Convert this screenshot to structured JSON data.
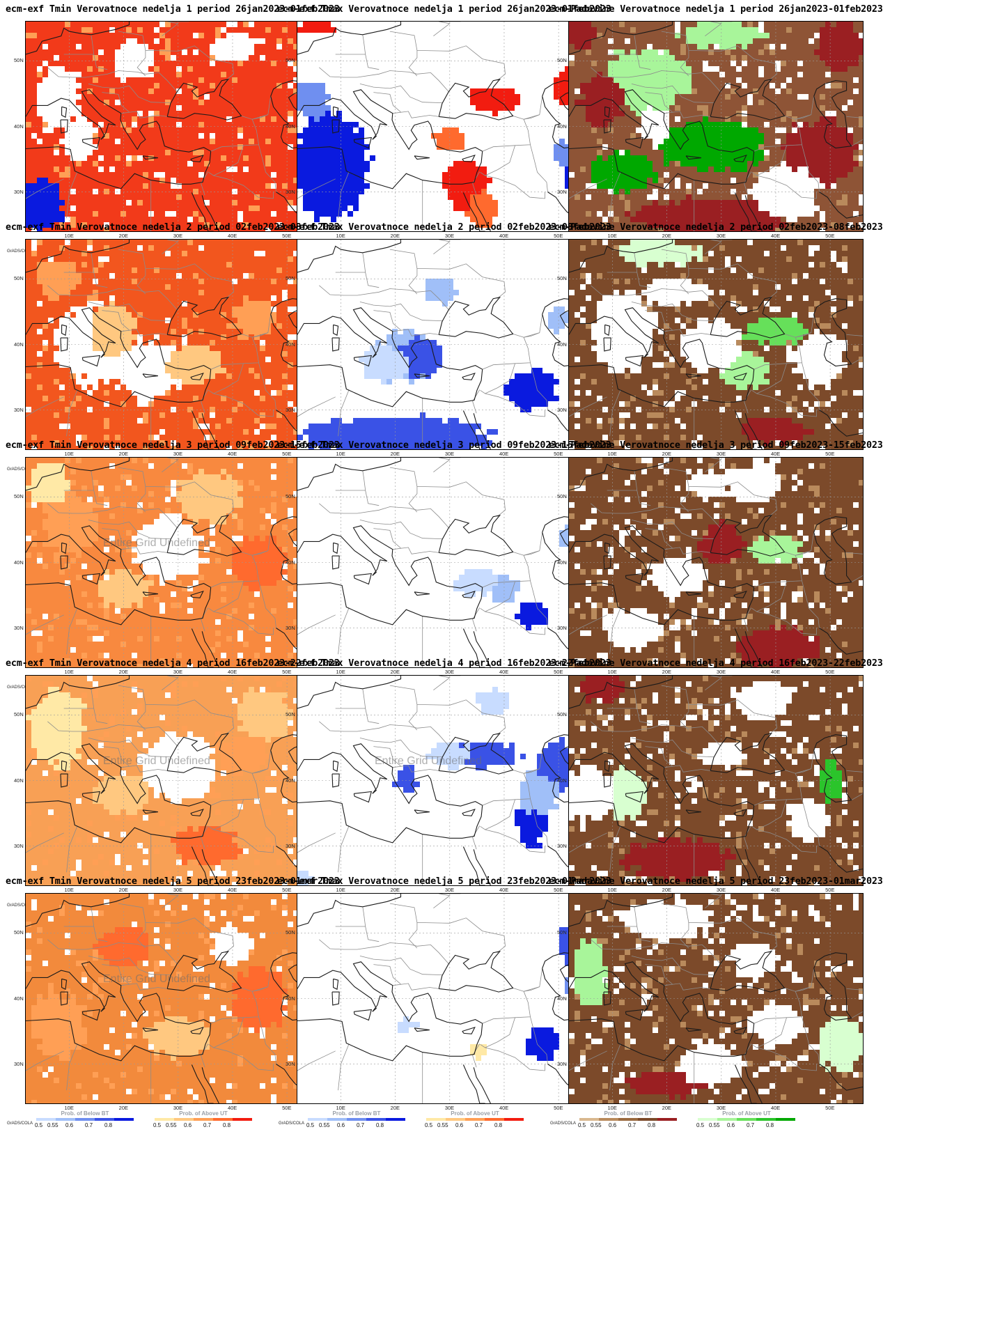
{
  "panels": [
    {
      "title": "ecm-exf Tmin Verovatnoce nedelja 1 period 26jan2023-01feb2023",
      "kind": "tmin",
      "week": 1,
      "base": "#f23a1a"
    },
    {
      "title": "ecm-exf Tmax Verovatnoce nedelja 1 period 26jan2023-01feb2023",
      "kind": "tmax",
      "week": 1,
      "base": "#ffffff"
    },
    {
      "title": "ecm-Padavine Verovatnoce nedelja 1 period 26jan2023-01feb2023",
      "kind": "pad",
      "week": 1,
      "base": "#8e5436"
    },
    {
      "title": "ecm-exf Tmin Verovatnoce nedelja 2 period 02feb2023-08feb2023",
      "kind": "tmin",
      "week": 2,
      "base": "#f2561e"
    },
    {
      "title": "ecm-exf Tmax Verovatnoce nedelja 2 period 02feb2023-08feb2023",
      "kind": "tmax",
      "week": 2,
      "base": "#ffffff"
    },
    {
      "title": "ecm-Padavine Verovatnoce nedelja 2 period 02feb2023-08feb2023",
      "kind": "pad",
      "week": 2,
      "base": "#7c4a2a"
    },
    {
      "title": "ecm-exf Tmin Verovatnoce nedelja 3 period 09feb2023-15feb2023",
      "kind": "tmin",
      "week": 3,
      "base": "#f8893f",
      "undef": "Entire Grid Undefined"
    },
    {
      "title": "ecm-exf Tmax Verovatnoce nedelja 3 period 09feb2023-15feb2023",
      "kind": "tmax",
      "week": 3,
      "base": "#ffffff",
      "above_only": true
    },
    {
      "title": "ecm-Padavine Verovatnoce nedelja 3 period 09feb2023-15feb2023",
      "kind": "pad",
      "week": 3,
      "base": "#7c4a2a"
    },
    {
      "title": "ecm-exf Tmin Verovatnoce nedelja 4 period 16feb2023-22feb2023",
      "kind": "tmin",
      "week": 4,
      "base": "#f8a055",
      "undef": "Entire Grid Undefined"
    },
    {
      "title": "ecm-exf Tmax Verovatnoce nedelja 4 period 16feb2023-22feb2023",
      "kind": "tmax",
      "week": 4,
      "base": "#ffffff",
      "undef": "Entire Grid Undefined",
      "above_only": true
    },
    {
      "title": "ecm-Padavine Verovatnoce nedelja 4 period 16feb2023-22feb2023",
      "kind": "pad",
      "week": 4,
      "base": "#7c4a2a"
    },
    {
      "title": "ecm-exf Tmin Verovatnoce nedelja 5 period 23feb2023-01mar2023",
      "kind": "tmin",
      "week": 5,
      "base": "#f28a3c",
      "undef": "Entire Grid Undefined"
    },
    {
      "title": "ecm-exf Tmax Verovatnoce nedelja 5 period 23feb2023-01mar2023",
      "kind": "tmax",
      "week": 5,
      "base": "#ffffff"
    },
    {
      "title": "ecm-Padavine Verovatnoce nedelja 5 period 23feb2023-01mar2023",
      "kind": "pad",
      "week": 5,
      "base": "#7c4a2a"
    }
  ],
  "axes": {
    "lat_ticks": [
      "50N",
      "40N",
      "30N"
    ],
    "lon_ticks": [
      "10E",
      "20E",
      "30E",
      "40E",
      "50E"
    ]
  },
  "legend": {
    "below_title": "Prob. of Below BT",
    "above_title": "Prob. of Above UT",
    "levels": [
      "0.5",
      "0.55",
      "0.6",
      "0.7",
      "0.8"
    ],
    "grads": "GrADS/COLA",
    "colors": {
      "temp_below": [
        "#c8dcff",
        "#a0bff8",
        "#6f8ff0",
        "#3a52e6",
        "#0a1adf"
      ],
      "temp_above": [
        "#ffe9a6",
        "#ffc880",
        "#ff9f55",
        "#ff6a2e",
        "#f21c10"
      ],
      "pad_below": [
        "#d9b88f",
        "#b98a5c",
        "#9a6a40",
        "#7c4a2a",
        "#9a1f22"
      ],
      "pad_above": [
        "#d8ffd0",
        "#a8f59a",
        "#66e05a",
        "#2bc42b",
        "#00a800"
      ]
    }
  }
}
